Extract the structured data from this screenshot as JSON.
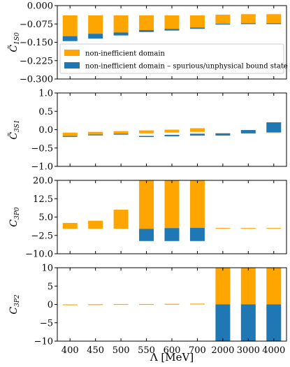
{
  "colors": {
    "non_inefficient": "#ffa500",
    "spurious": "#1f77b4",
    "thin": "#6aaed6"
  },
  "chart_data": [
    {
      "type": "bar",
      "id": "c1s0",
      "ylabel_main": "C̃",
      "ylabel_sub": "1S0",
      "ylim": [
        -0.3,
        0.0
      ],
      "yticks": [
        0.0,
        -0.075,
        -0.15,
        -0.225,
        -0.3
      ],
      "ytick_labels": [
        "0.000",
        "−0.075",
        "−0.150",
        "−0.225",
        "−0.300"
      ],
      "categories": [
        "400",
        "450",
        "500",
        "550",
        "600",
        "700",
        "2000",
        "3000",
        "4000"
      ],
      "series": [
        {
          "role": "non_inefficient",
          "ranges": [
            [
              -0.125,
              -0.04
            ],
            [
              -0.115,
              -0.04
            ],
            [
              -0.11,
              -0.04
            ],
            [
              -0.1,
              -0.04
            ],
            [
              -0.095,
              -0.04
            ],
            [
              -0.09,
              -0.04
            ],
            [
              -0.075,
              -0.037
            ],
            [
              -0.073,
              -0.035
            ],
            [
              -0.073,
              -0.035
            ]
          ]
        },
        {
          "role": "spurious",
          "ranges": [
            [
              -0.145,
              -0.125
            ],
            [
              -0.135,
              -0.115
            ],
            [
              -0.122,
              -0.11
            ],
            [
              -0.108,
              -0.1
            ],
            [
              -0.102,
              -0.095
            ],
            [
              -0.095,
              -0.09
            ],
            [
              -0.077,
              -0.075
            ],
            [
              -0.075,
              -0.073
            ],
            [
              -0.075,
              -0.073
            ]
          ]
        }
      ],
      "legend": {
        "placement": "lower-left",
        "entries": [
          {
            "role": "non_inefficient",
            "label": "non-inefficient domain"
          },
          {
            "role": "spurious",
            "label": "non-inefficient domain – spurious/unphysical bound state"
          }
        ]
      }
    },
    {
      "type": "bar",
      "id": "c3s1",
      "ylabel_main": "C̃",
      "ylabel_sub": "3S1",
      "ylim": [
        -1.0,
        1.0
      ],
      "yticks": [
        1.0,
        0.5,
        0.0,
        -0.5,
        -1.0
      ],
      "ytick_labels": [
        "1.0",
        "0.5",
        "0.0",
        "−0.5",
        "−1.0"
      ],
      "categories": [
        "400",
        "450",
        "500",
        "550",
        "600",
        "700",
        "2000",
        "3000",
        "4000"
      ],
      "series": [
        {
          "role": "non_inefficient",
          "ranges": [
            [
              -0.18,
              -0.08
            ],
            [
              -0.14,
              -0.06
            ],
            [
              -0.12,
              -0.04
            ],
            [
              -0.1,
              -0.02
            ],
            [
              -0.08,
              0.0
            ],
            [
              -0.06,
              0.04
            ],
            [
              -0.12,
              -0.1
            ],
            [
              -0.1,
              -0.08
            ],
            [
              -0.09,
              -0.07
            ]
          ]
        },
        {
          "role": "spurious",
          "ranges": [
            [
              -0.19,
              -0.18
            ],
            [
              -0.15,
              -0.14
            ],
            [
              -0.13,
              -0.12
            ],
            [
              -0.2,
              -0.17
            ],
            [
              -0.18,
              -0.14
            ],
            [
              -0.16,
              -0.11
            ],
            [
              -0.16,
              -0.1
            ],
            [
              -0.1,
              -0.01
            ],
            [
              -0.07,
              0.2
            ]
          ]
        }
      ]
    },
    {
      "type": "bar",
      "id": "c3p0",
      "ylabel_main": "C",
      "ylabel_sub": "3P0",
      "ylim": [
        -10.0,
        20.0
      ],
      "yticks": [
        20.0,
        12.5,
        5.0,
        -2.5,
        -10.0
      ],
      "ytick_labels": [
        "20.0",
        "12.5",
        "5.0",
        "−2.5",
        "−10.0"
      ],
      "categories": [
        "400",
        "450",
        "500",
        "550",
        "600",
        "700",
        "2000",
        "3000",
        "4000"
      ],
      "series": [
        {
          "role": "non_inefficient",
          "ranges": [
            [
              0.2,
              2.6
            ],
            [
              0.2,
              3.5
            ],
            [
              0.2,
              8.0
            ],
            [
              0.2,
              20.0
            ],
            [
              0.5,
              20.0
            ],
            [
              0.6,
              20.0
            ],
            [
              0.3,
              0.4
            ],
            [
              0.3,
              0.4
            ],
            [
              0.3,
              0.4
            ]
          ]
        },
        {
          "role": "spurious",
          "ranges": [
            null,
            null,
            null,
            [
              -4.8,
              0.2
            ],
            [
              -4.8,
              0.5
            ],
            [
              -4.8,
              0.6
            ],
            null,
            null,
            null
          ]
        }
      ]
    },
    {
      "type": "bar",
      "id": "c3p2",
      "ylabel_main": "C",
      "ylabel_sub": "3P2",
      "ylim": [
        -10.0,
        10.0
      ],
      "yticks": [
        10,
        5,
        0,
        -5,
        -10
      ],
      "ytick_labels": [
        "10",
        "5",
        "0",
        "−5",
        "−10"
      ],
      "categories": [
        "400",
        "450",
        "500",
        "550",
        "600",
        "700",
        "2000",
        "3000",
        "4000"
      ],
      "xlabel": "Λ [MeV]",
      "series": [
        {
          "role": "non_inefficient",
          "ranges": [
            [
              -0.2,
              0.0
            ],
            [
              -0.15,
              0.05
            ],
            [
              -0.1,
              0.1
            ],
            [
              -0.1,
              0.1
            ],
            [
              -0.05,
              0.15
            ],
            [
              0.0,
              0.2
            ],
            [
              0.0,
              10.0
            ],
            [
              0.0,
              10.0
            ],
            [
              0.0,
              10.0
            ]
          ]
        },
        {
          "role": "spurious",
          "ranges": [
            null,
            null,
            null,
            null,
            null,
            null,
            [
              -10.0,
              0.0
            ],
            [
              -10.0,
              0.0
            ],
            [
              -10.0,
              0.0
            ]
          ]
        }
      ]
    }
  ]
}
